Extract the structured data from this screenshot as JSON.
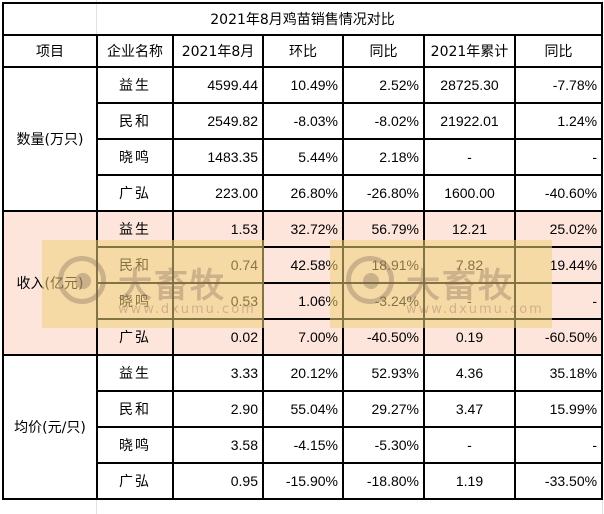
{
  "title": "2021年8月鸡苗销售情况对比",
  "headers": [
    "项目",
    "企业名称",
    "2021年8月",
    "环比",
    "同比",
    "2021年累计",
    "同比"
  ],
  "groups": [
    {
      "label": "数量(万只)",
      "rows": [
        {
          "company": "益生",
          "aug": "4599.44",
          "mom": "10.49%",
          "mom_sign": "pos",
          "yoy": "2.52%",
          "yoy_sign": "pos",
          "ytd": "28725.30",
          "ytd_yoy": "-7.78%",
          "ytd_yoy_sign": "neg"
        },
        {
          "company": "民和",
          "aug": "2549.82",
          "mom": "-8.03%",
          "mom_sign": "neg",
          "yoy": "-8.02%",
          "yoy_sign": "neg",
          "ytd": "21922.01",
          "ytd_yoy": "1.24%",
          "ytd_yoy_sign": "pos"
        },
        {
          "company": "晓鸣",
          "aug": "1483.35",
          "mom": "5.44%",
          "mom_sign": "pos",
          "yoy": "2.18%",
          "yoy_sign": "pos",
          "ytd": "-",
          "ytd_yoy": "-",
          "ytd_yoy_sign": "pos"
        },
        {
          "company": "广弘",
          "aug": "223.00",
          "mom": "26.80%",
          "mom_sign": "pos",
          "yoy": "-26.80%",
          "yoy_sign": "neg",
          "ytd": "1600.00",
          "ytd_yoy": "-40.60%",
          "ytd_yoy_sign": "neg"
        }
      ]
    },
    {
      "label": "收入(亿元)",
      "rows": [
        {
          "company": "益生",
          "aug": "1.53",
          "mom": "32.72%",
          "mom_sign": "pos",
          "yoy": "56.79%",
          "yoy_sign": "pos",
          "ytd": "12.21",
          "ytd_yoy": "25.02%",
          "ytd_yoy_sign": "pos"
        },
        {
          "company": "民和",
          "aug": "0.74",
          "mom": "42.58%",
          "mom_sign": "pos",
          "yoy": "18.91%",
          "yoy_sign": "pos",
          "ytd": "7.82",
          "ytd_yoy": "19.44%",
          "ytd_yoy_sign": "pos"
        },
        {
          "company": "晓鸣",
          "aug": "0.53",
          "mom": "1.06%",
          "mom_sign": "pos",
          "yoy": "-3.24%",
          "yoy_sign": "neg",
          "ytd": "-",
          "ytd_yoy": "-",
          "ytd_yoy_sign": "pos"
        },
        {
          "company": "广弘",
          "aug": "0.02",
          "mom": "7.00%",
          "mom_sign": "pos",
          "yoy": "-40.50%",
          "yoy_sign": "neg",
          "ytd": "0.19",
          "ytd_yoy": "-60.50%",
          "ytd_yoy_sign": "neg"
        }
      ]
    },
    {
      "label": "均价(元/只)",
      "rows": [
        {
          "company": "益生",
          "aug": "3.33",
          "mom": "20.12%",
          "mom_sign": "pos",
          "yoy": "52.93%",
          "yoy_sign": "pos",
          "ytd": "4.36",
          "ytd_yoy": "35.18%",
          "ytd_yoy_sign": "pos"
        },
        {
          "company": "民和",
          "aug": "2.90",
          "mom": "55.04%",
          "mom_sign": "pos",
          "yoy": "29.27%",
          "yoy_sign": "pos",
          "ytd": "3.47",
          "ytd_yoy": "15.99%",
          "ytd_yoy_sign": "pos"
        },
        {
          "company": "晓鸣",
          "aug": "3.58",
          "mom": "-4.15%",
          "mom_sign": "neg",
          "yoy": "-5.30%",
          "yoy_sign": "neg",
          "ytd": "-",
          "ytd_yoy": "-",
          "ytd_yoy_sign": "pos"
        },
        {
          "company": "广弘",
          "aug": "0.95",
          "mom": "-15.90%",
          "mom_sign": "neg",
          "yoy": "-18.80%",
          "yoy_sign": "neg",
          "ytd": "1.19",
          "ytd_yoy": "-33.50%",
          "ytd_yoy_sign": "neg"
        }
      ]
    }
  ],
  "watermark": {
    "brand": "大畜牧",
    "url": "www.dxumu.com"
  },
  "colors": {
    "title": "#2a7fc4",
    "number": "#4472c4",
    "positive": "#ff0000",
    "negative": "#00b050",
    "highlight_bg": "#fde5dc"
  }
}
